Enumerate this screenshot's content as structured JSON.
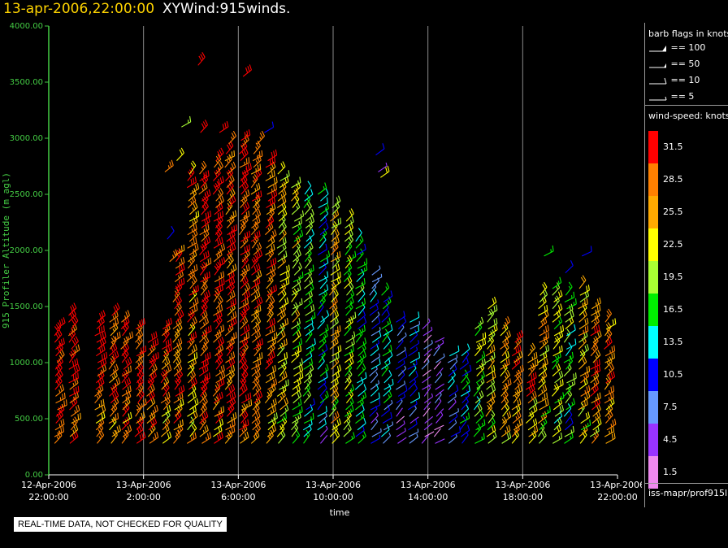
{
  "header": {
    "timestamp": "13-apr-2006,22:00:00",
    "plot_name": "XYWind:915winds."
  },
  "chart_data": {
    "type": "wind-barb",
    "ylabel": "915 Profiler Altitude (m agl)",
    "xlabel": "time",
    "ylim": [
      0,
      4000
    ],
    "yticks": [
      "0.00",
      "500.00",
      "1000.00",
      "1500.00",
      "2000.00",
      "2500.00",
      "3000.00",
      "3500.00",
      "4000.00"
    ],
    "xlim_hours": [
      0,
      24
    ],
    "xticks": [
      {
        "hour": 0,
        "line1": "12-Apr-2006",
        "line2": "22:00:00"
      },
      {
        "hour": 4,
        "line1": "13-Apr-2006",
        "line2": "2:00:00"
      },
      {
        "hour": 8,
        "line1": "13-Apr-2006",
        "line2": "6:00:00"
      },
      {
        "hour": 12,
        "line1": "13-Apr-2006",
        "line2": "10:00:00"
      },
      {
        "hour": 16,
        "line1": "13-Apr-2006",
        "line2": "14:00:00"
      },
      {
        "hour": 20,
        "line1": "13-Apr-2006",
        "line2": "18:00:00"
      },
      {
        "hour": 24,
        "line1": "13-Apr-2006",
        "line2": "22:00:00"
      }
    ],
    "grid": "vertical",
    "profiles": [
      {
        "hour": 0.3,
        "top": 1300,
        "speed": 31
      },
      {
        "hour": 0.9,
        "top": 1450,
        "speed": 31
      },
      {
        "hour": 2.0,
        "top": 1400,
        "speed": 31
      },
      {
        "hour": 2.6,
        "top": 1450,
        "speed": 30
      },
      {
        "hour": 3.1,
        "top": 1400,
        "speed": 31
      },
      {
        "hour": 3.7,
        "top": 1300,
        "speed": 31
      },
      {
        "hour": 4.2,
        "top": 1200,
        "speed": 31
      },
      {
        "hour": 4.8,
        "top": 1300,
        "speed": 30
      },
      {
        "hour": 5.3,
        "top": 2000,
        "speed": 29
      },
      {
        "hour": 5.9,
        "top": 2700,
        "speed": 27
      },
      {
        "hour": 6.4,
        "top": 2700,
        "speed": 31
      },
      {
        "hour": 7.0,
        "top": 2800,
        "speed": 31
      },
      {
        "hour": 7.5,
        "top": 2900,
        "speed": 30
      },
      {
        "hour": 8.1,
        "top": 3000,
        "speed": 31
      },
      {
        "hour": 8.6,
        "top": 2900,
        "speed": 29
      },
      {
        "hour": 9.2,
        "top": 2800,
        "speed": 28
      },
      {
        "hour": 9.7,
        "top": 2700,
        "speed": 23
      },
      {
        "hour": 10.3,
        "top": 2600,
        "speed": 21
      },
      {
        "hour": 10.8,
        "top": 2500,
        "speed": 17
      },
      {
        "hour": 11.4,
        "top": 2500,
        "speed": 14
      },
      {
        "hour": 11.9,
        "top": 2400,
        "speed": 24
      },
      {
        "hour": 12.5,
        "top": 2300,
        "speed": 19
      },
      {
        "hour": 13.0,
        "top": 2100,
        "speed": 15
      },
      {
        "hour": 13.6,
        "top": 1800,
        "speed": 11
      },
      {
        "hour": 14.1,
        "top": 1600,
        "speed": 14
      },
      {
        "hour": 14.7,
        "top": 1400,
        "speed": 9
      },
      {
        "hour": 15.2,
        "top": 1400,
        "speed": 12
      },
      {
        "hour": 15.8,
        "top": 1300,
        "speed": 5
      },
      {
        "hour": 16.3,
        "top": 1200,
        "speed": 6
      },
      {
        "hour": 16.9,
        "top": 1100,
        "speed": 11
      },
      {
        "hour": 17.4,
        "top": 1100,
        "speed": 13
      },
      {
        "hour": 18.0,
        "top": 1300,
        "speed": 19
      },
      {
        "hour": 18.5,
        "top": 1500,
        "speed": 23
      },
      {
        "hour": 19.1,
        "top": 1300,
        "speed": 26
      },
      {
        "hour": 19.6,
        "top": 1200,
        "speed": 30
      },
      {
        "hour": 20.2,
        "top": 1100,
        "speed": 28
      },
      {
        "hour": 20.7,
        "top": 1600,
        "speed": 24
      },
      {
        "hour": 21.3,
        "top": 1700,
        "speed": 20
      },
      {
        "hour": 21.8,
        "top": 1600,
        "speed": 18
      },
      {
        "hour": 22.4,
        "top": 1700,
        "speed": 24
      },
      {
        "hour": 22.9,
        "top": 1500,
        "speed": 28
      },
      {
        "hour": 23.5,
        "top": 1400,
        "speed": 27
      }
    ],
    "upper_barbs": [
      {
        "hour": 6.3,
        "alt": 3650,
        "speed": 32
      },
      {
        "hour": 8.2,
        "alt": 3550,
        "speed": 32
      },
      {
        "hour": 5.6,
        "alt": 3100,
        "speed": 19
      },
      {
        "hour": 6.4,
        "alt": 3050,
        "speed": 32
      },
      {
        "hour": 7.2,
        "alt": 3050,
        "speed": 32
      },
      {
        "hour": 9.1,
        "alt": 3050,
        "speed": 11
      },
      {
        "hour": 7.6,
        "alt": 2950,
        "speed": 28
      },
      {
        "hour": 8.8,
        "alt": 2950,
        "speed": 29
      },
      {
        "hour": 5.4,
        "alt": 2800,
        "speed": 21
      },
      {
        "hour": 4.9,
        "alt": 2700,
        "speed": 28
      },
      {
        "hour": 13.8,
        "alt": 2850,
        "speed": 11
      },
      {
        "hour": 13.9,
        "alt": 2700,
        "speed": 5
      },
      {
        "hour": 14.0,
        "alt": 2650,
        "speed": 23
      },
      {
        "hour": 5.0,
        "alt": 2100,
        "speed": 10
      },
      {
        "hour": 5.1,
        "alt": 1900,
        "speed": 28
      },
      {
        "hour": 20.9,
        "alt": 1950,
        "speed": 17
      },
      {
        "hour": 21.8,
        "alt": 1800,
        "speed": 11
      },
      {
        "hour": 22.5,
        "alt": 1950,
        "speed": 10
      }
    ]
  },
  "legend": {
    "flags_title": "barb flags in knots",
    "flags": [
      "== 100",
      "== 50",
      "== 10",
      "== 5"
    ],
    "speed_title": "wind-speed: knots",
    "speed_labels": [
      "31.5",
      "28.5",
      "25.5",
      "22.5",
      "19.5",
      "16.5",
      "13.5",
      "10.5",
      "7.5",
      "4.5",
      "1.5"
    ],
    "speed_colors": [
      "#ff0000",
      "#ff8000",
      "#ffaa00",
      "#ffff00",
      "#aaff33",
      "#00ee00",
      "#00ffff",
      "#0000ff",
      "#6699ff",
      "#9933ff",
      "#ee88ee"
    ]
  },
  "source_label": "iss-mapr/prof915l",
  "disclaimer": "REAL-TIME DATA, NOT CHECKED FOR QUALITY"
}
